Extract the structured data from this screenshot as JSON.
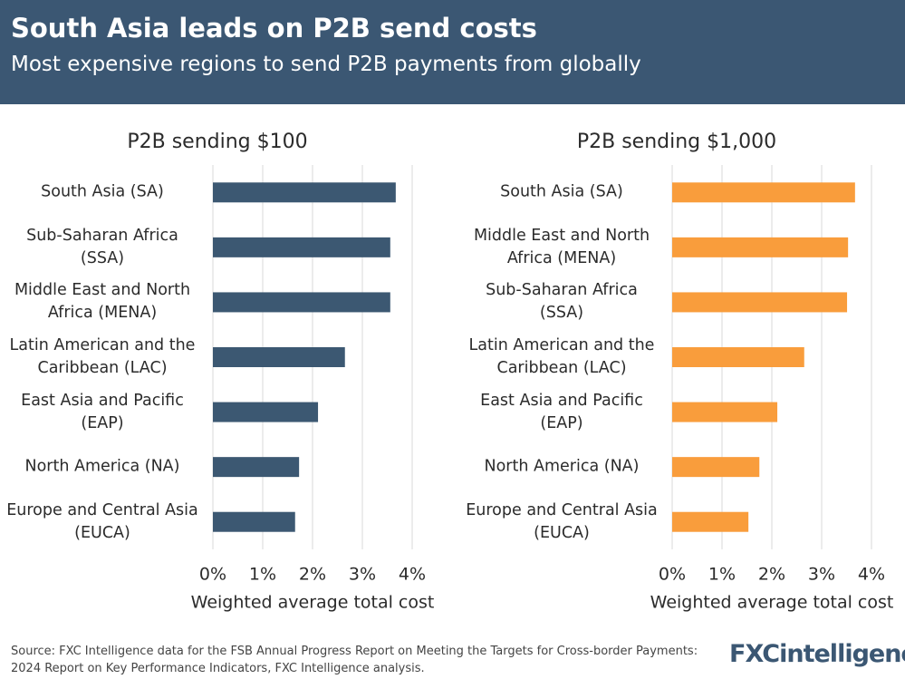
{
  "header": {
    "title": "South Asia leads on P2B send costs",
    "subtitle": "Most expensive regions to send P2B payments from globally"
  },
  "chart_data": [
    {
      "type": "bar",
      "orientation": "horizontal",
      "title": "P2B sending $100",
      "x_label": "Weighted average total cost",
      "categories": [
        "South Asia (SA)",
        "Sub-Saharan Africa (SSA)",
        "Middle East and North Africa (MENA)",
        "Latin American and the Caribbean (LAC)",
        "East Asia and Pacific (EAP)",
        "North America (NA)",
        "Europe and Central Asia (EUCA)"
      ],
      "values": [
        3.67,
        3.56,
        3.56,
        2.65,
        2.11,
        1.73,
        1.65
      ],
      "color": "#3c5872",
      "xlim": [
        0,
        4
      ],
      "xticks": [
        {
          "value": 0,
          "label": "0%"
        },
        {
          "value": 1,
          "label": "1%"
        },
        {
          "value": 2,
          "label": "2%"
        },
        {
          "value": 3,
          "label": "3%"
        },
        {
          "value": 4,
          "label": "4%"
        }
      ],
      "grid": true
    },
    {
      "type": "bar",
      "orientation": "horizontal",
      "title": "P2B sending $1,000",
      "x_label": "Weighted average total cost",
      "categories": [
        "South Asia (SA)",
        "Middle East and North Africa (MENA)",
        "Sub-Saharan Africa (SSA)",
        "Latin American and the Caribbean (LAC)",
        "East Asia and Pacific (EAP)",
        "North America (NA)",
        "Europe and Central Asia (EUCA)"
      ],
      "values": [
        3.67,
        3.53,
        3.51,
        2.65,
        2.11,
        1.75,
        1.53
      ],
      "color": "#f99d3c",
      "xlim": [
        0,
        4
      ],
      "xticks": [
        {
          "value": 0,
          "label": "0%"
        },
        {
          "value": 1,
          "label": "1%"
        },
        {
          "value": 2,
          "label": "2%"
        },
        {
          "value": 3,
          "label": "3%"
        },
        {
          "value": 4,
          "label": "4%"
        }
      ],
      "grid": true
    }
  ],
  "footer": {
    "source": "Source: FXC Intelligence data for the FSB Annual Progress Report on Meeting the Targets for Cross-border Payments: 2024 Report on Key Performance Indicators, FXC Intelligence analysis.",
    "logo": "FXCintelligence"
  }
}
